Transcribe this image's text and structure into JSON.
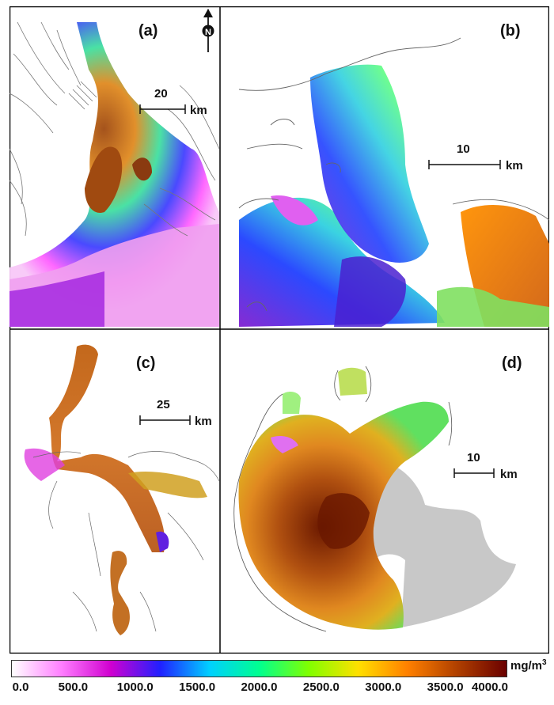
{
  "panels": [
    {
      "label": "(a)",
      "scale_value": "20",
      "scale_unit": "km"
    },
    {
      "label": "(b)",
      "scale_value": "10",
      "scale_unit": "km"
    },
    {
      "label": "(c)",
      "scale_value": "25",
      "scale_unit": "km"
    },
    {
      "label": "(d)",
      "scale_value": "10",
      "scale_unit": "km"
    }
  ],
  "north_arrow": {
    "letter": "N",
    "icon": "north-arrow-icon"
  },
  "colorbar": {
    "unit": "mg/m",
    "unit_exp": "3",
    "min": 0,
    "max": 4000,
    "ticks": [
      "0.0",
      "500.0",
      "1000.0",
      "1500.0",
      "2000.0",
      "2500.0",
      "3000.0",
      "3500.0",
      "4000.0"
    ],
    "colors": [
      "#ffffff",
      "#ff7fff",
      "#d000d0",
      "#2020ff",
      "#00d0ff",
      "#00ff90",
      "#80ff00",
      "#ffe000",
      "#ff8000",
      "#b04000",
      "#6a0000"
    ]
  },
  "colors": {
    "land": "#c8c8c8",
    "outline": "#555555",
    "frame": "#000000"
  }
}
